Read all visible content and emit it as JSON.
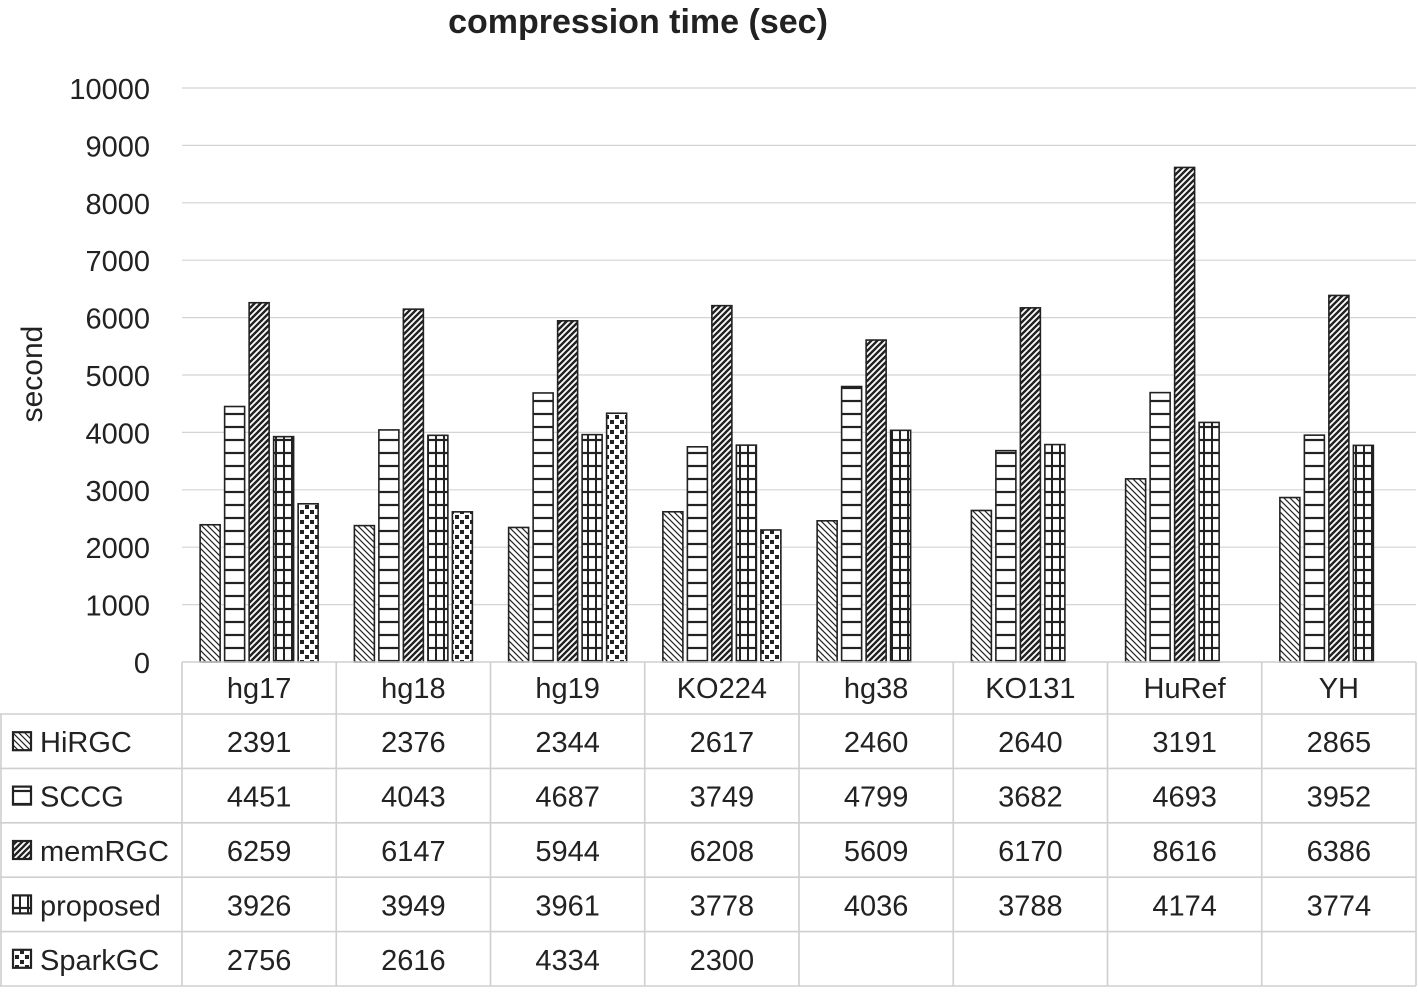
{
  "chart_data": {
    "type": "bar",
    "title": "compression time (sec)",
    "xlabel": "",
    "ylabel": "second",
    "ylim": [
      0,
      10000
    ],
    "yticks": [
      0,
      1000,
      2000,
      3000,
      4000,
      5000,
      6000,
      7000,
      8000,
      9000,
      10000
    ],
    "grid": true,
    "legend": "data-table-left",
    "categories": [
      "hg17",
      "hg18",
      "hg19",
      "KO224",
      "hg38",
      "KO131",
      "HuRef",
      "YH"
    ],
    "series": [
      {
        "name": "HiRGC",
        "pattern": "diagonal-stripes-light",
        "values": [
          2391,
          2376,
          2344,
          2617,
          2460,
          2640,
          3191,
          2865
        ]
      },
      {
        "name": "SCCG",
        "pattern": "horizontal-stripes",
        "values": [
          4451,
          4043,
          4687,
          3749,
          4799,
          3682,
          4693,
          3952
        ]
      },
      {
        "name": "memRGC",
        "pattern": "diagonal-stripes-dense",
        "values": [
          6259,
          6147,
          5944,
          6208,
          5609,
          6170,
          8616,
          6386
        ]
      },
      {
        "name": "proposed",
        "pattern": "brick-grid",
        "values": [
          3926,
          3949,
          3961,
          3778,
          4036,
          3788,
          4174,
          3774
        ]
      },
      {
        "name": "SparkGC",
        "pattern": "dotted-blocks",
        "values": [
          2756,
          2616,
          4334,
          2300,
          null,
          null,
          null,
          null
        ]
      }
    ]
  }
}
